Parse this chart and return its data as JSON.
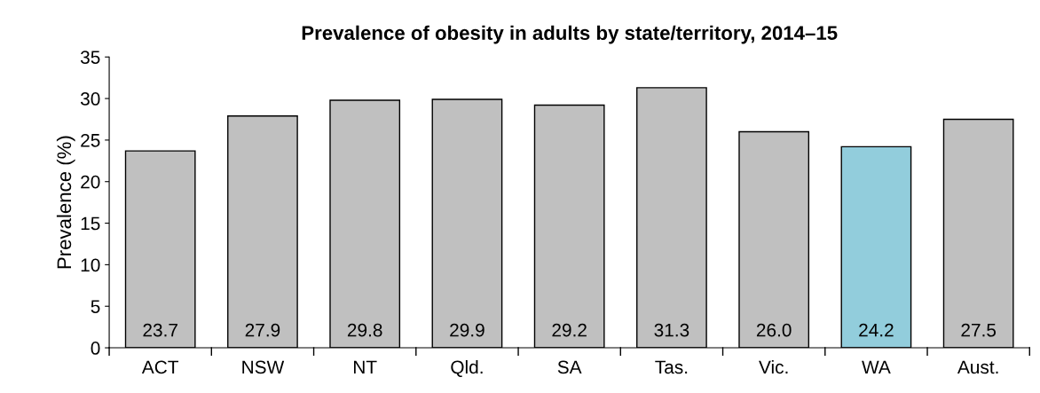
{
  "chart_data": {
    "type": "bar",
    "title": "Prevalence of obesity in adults by state/territory, 2014–15",
    "ylabel": "Prevalence (%)",
    "categories": [
      "ACT",
      "NSW",
      "NT",
      "Qld.",
      "SA",
      "Tas.",
      "Vic.",
      "WA",
      "Aust."
    ],
    "values": [
      23.7,
      27.9,
      29.8,
      29.9,
      29.2,
      31.3,
      26.0,
      24.2,
      27.5
    ],
    "value_labels": [
      "23.7",
      "27.9",
      "29.8",
      "29.9",
      "29.2",
      "31.3",
      "26.0",
      "24.2",
      "27.5"
    ],
    "colors": [
      "#c0c0c0",
      "#c0c0c0",
      "#c0c0c0",
      "#c0c0c0",
      "#c0c0c0",
      "#c0c0c0",
      "#c0c0c0",
      "#92cddc",
      "#c0c0c0"
    ],
    "ylim": [
      0,
      35
    ],
    "yticks": [
      0,
      5,
      10,
      15,
      20,
      25,
      30,
      35
    ],
    "grid": false,
    "legend": false
  }
}
